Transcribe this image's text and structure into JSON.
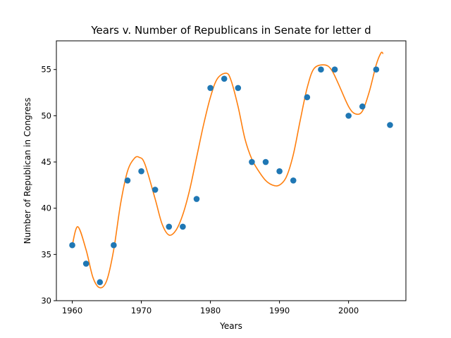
{
  "chart_data": {
    "type": "scatter",
    "title": "Years v. Number of Republicans in Senate for letter d",
    "xlabel": "Years",
    "ylabel": "Number of Republican in Congress",
    "xlim": [
      1957.7,
      2008.3
    ],
    "ylim": [
      30,
      58.1
    ],
    "xticks": [
      1960,
      1970,
      1980,
      1990,
      2000
    ],
    "yticks": [
      30,
      35,
      40,
      45,
      50,
      55
    ],
    "grid": false,
    "colors": {
      "points": "#1f77b4",
      "curve": "#ff7f0e"
    },
    "points": {
      "x": [
        1960,
        1962,
        1964,
        1966,
        1968,
        1970,
        1972,
        1974,
        1976,
        1978,
        1980,
        1982,
        1984,
        1986,
        1988,
        1990,
        1992,
        1994,
        1996,
        1998,
        2000,
        2002,
        2004,
        2006
      ],
      "y": [
        36,
        34,
        32,
        36,
        43,
        44,
        42,
        38,
        38,
        41,
        53,
        54,
        53,
        45,
        45,
        44,
        43,
        52,
        55,
        55,
        50,
        51,
        55,
        49
      ]
    },
    "curve": {
      "x": [
        1960,
        1960.8,
        1962,
        1963,
        1964,
        1965,
        1966,
        1967,
        1968,
        1969,
        1969.7,
        1970.5,
        1972,
        1973,
        1974,
        1975,
        1976,
        1977,
        1978,
        1979,
        1980,
        1981,
        1982.3,
        1983,
        1984,
        1985,
        1986,
        1987,
        1988,
        1989,
        1990,
        1991,
        1992,
        1993,
        1994,
        1995,
        1996.5,
        1997.5,
        1998.5,
        2000,
        2001,
        2002,
        2003,
        2004,
        2004.7,
        2005
      ],
      "y": [
        36,
        38,
        35.5,
        32.5,
        31.4,
        32.2,
        35.5,
        40.5,
        44,
        45.4,
        45.5,
        44.8,
        41,
        38.3,
        37.1,
        37.6,
        39.3,
        42,
        45.5,
        49,
        52,
        54,
        54.6,
        53.8,
        51,
        47.5,
        45.3,
        44,
        43,
        42.5,
        42.5,
        43.4,
        45.8,
        49.5,
        53,
        55.1,
        55.5,
        55,
        53.5,
        51,
        50.2,
        50.5,
        52.6,
        55.5,
        56.8,
        56.7
      ]
    }
  }
}
